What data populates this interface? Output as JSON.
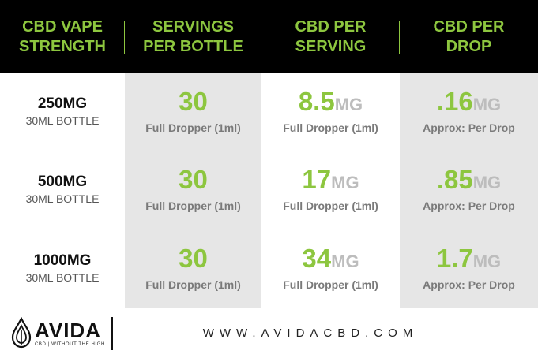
{
  "colors": {
    "accent_green": "#8dc63f",
    "header_bg": "#000000",
    "gray_cell": "#e6e6e6",
    "unit_gray": "#bdbdbd"
  },
  "header": {
    "col1": "CBD VAPE\nSTRENGTH",
    "col2": "SERVINGS\nPER BOTTLE",
    "col3": "CBD PER\nSERVING",
    "col4": "CBD PER\nDROP"
  },
  "rows": [
    {
      "strength": "250MG",
      "bottle": "30ML BOTTLE",
      "servings": "30",
      "servings_sub": "Full Dropper (1ml)",
      "per_serving": "8.5",
      "per_serving_unit": "MG",
      "per_serving_sub": "Full Dropper (1ml)",
      "per_drop": ".16",
      "per_drop_unit": "MG",
      "per_drop_sub": "Approx: Per Drop"
    },
    {
      "strength": "500MG",
      "bottle": "30ML BOTTLE",
      "servings": "30",
      "servings_sub": "Full Dropper (1ml)",
      "per_serving": "17",
      "per_serving_unit": "MG",
      "per_serving_sub": "Full Dropper (1ml)",
      "per_drop": ".85",
      "per_drop_unit": "MG",
      "per_drop_sub": "Approx: Per Drop"
    },
    {
      "strength": "1000MG",
      "bottle": "30ML BOTTLE",
      "servings": "30",
      "servings_sub": "Full Dropper (1ml)",
      "per_serving": "34",
      "per_serving_unit": "MG",
      "per_serving_sub": "Full Dropper (1ml)",
      "per_drop": "1.7",
      "per_drop_unit": "MG",
      "per_drop_sub": "Approx: Per Drop"
    }
  ],
  "footer": {
    "logo_name": "AVIDA",
    "logo_tagline": "CBD | WITHOUT THE HIGH",
    "logo_icon": "droplet-leaf-icon",
    "website": "WWW.AVIDACBD.COM"
  }
}
